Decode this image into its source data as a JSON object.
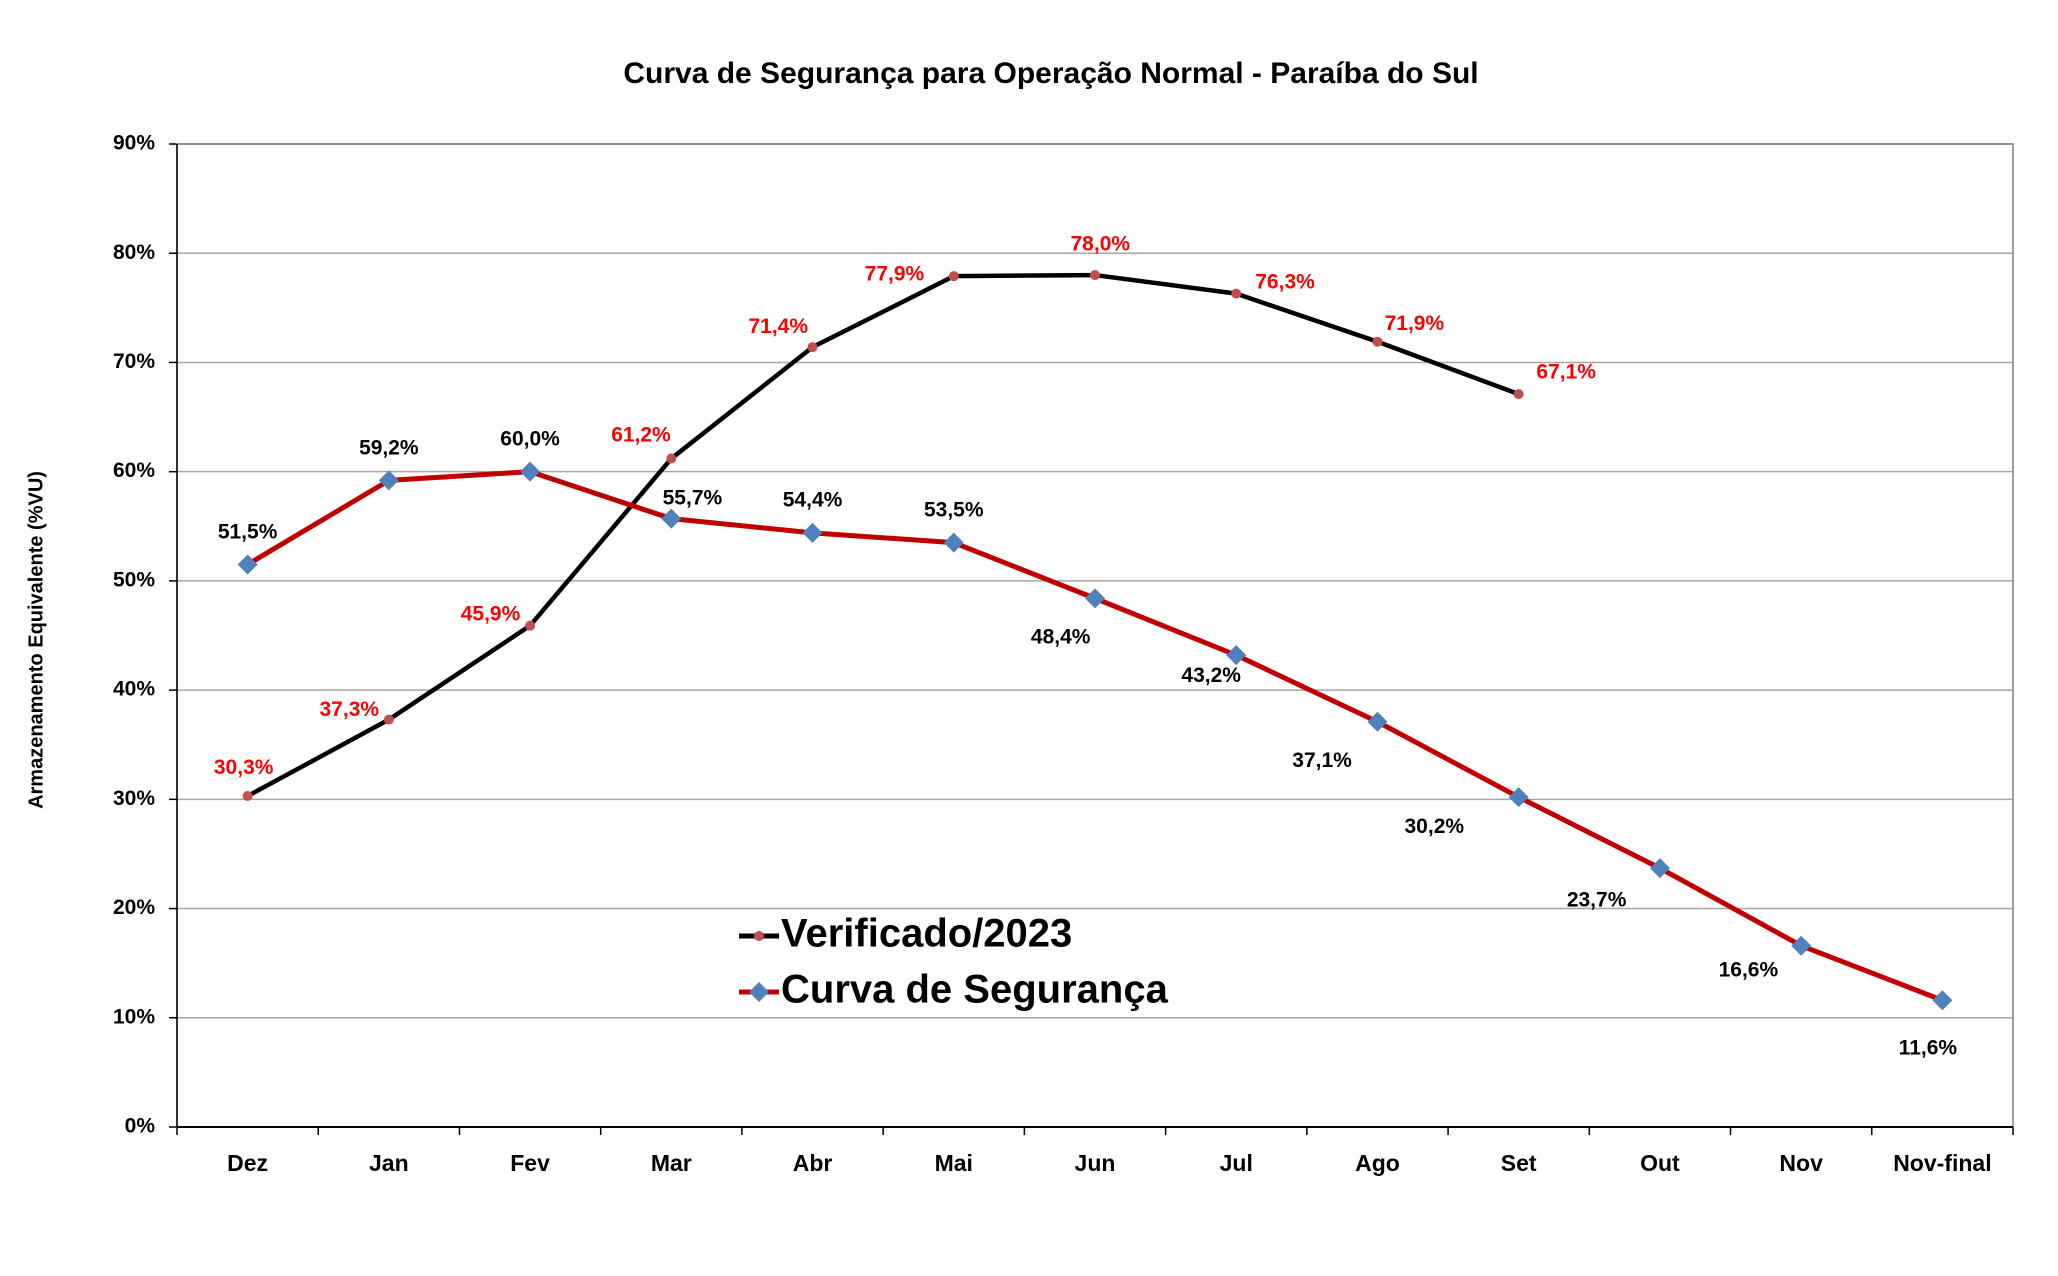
{
  "chart_data": {
    "type": "line",
    "title": "Curva de Segurança para Operação Normal - Paraíba do Sul",
    "y_label": "Armazenamento Equivalente (%VU)",
    "categories": [
      "Dez",
      "Jan",
      "Fev",
      "Mar",
      "Abr",
      "Mai",
      "Jun",
      "Jul",
      "Ago",
      "Set",
      "Out",
      "Nov",
      "Nov-final"
    ],
    "series": [
      {
        "name": "Verificado/2023",
        "color": "#000000",
        "marker": "circle",
        "marker_color": "#c0504d",
        "label_color": "#ff0000",
        "values": [
          30.3,
          37.3,
          45.9,
          61.2,
          71.4,
          77.9,
          78.0,
          76.3,
          71.9,
          67.1,
          null,
          null,
          null
        ],
        "value_labels": [
          "30,3%",
          "37,3%",
          "45,9%",
          "61,2%",
          "71,4%",
          "77,9%",
          "78,0%",
          "76,3%",
          "71,9%",
          "67,1%",
          null,
          null,
          null
        ]
      },
      {
        "name": "Curva de Segurança",
        "color": "#c00000",
        "marker": "diamond",
        "marker_color": "#4f81bd",
        "label_color": "#000000",
        "values": [
          51.5,
          59.2,
          60.0,
          55.7,
          54.4,
          53.5,
          48.4,
          43.2,
          37.1,
          30.2,
          23.7,
          16.6,
          11.6
        ],
        "value_labels": [
          "51,5%",
          "59,2%",
          "60,0%",
          "55,7%",
          "54,4%",
          "53,5%",
          "48,4%",
          "43,2%",
          "37,1%",
          "30,2%",
          "23,7%",
          "16,6%",
          "11,6%"
        ]
      }
    ],
    "ylim": [
      0,
      90
    ],
    "yticks": [
      {
        "value": 0,
        "label": "0%"
      },
      {
        "value": 10,
        "label": "10%"
      },
      {
        "value": 20,
        "label": "20%"
      },
      {
        "value": 30,
        "label": "30%"
      },
      {
        "value": 40,
        "label": "40%"
      },
      {
        "value": 50,
        "label": "50%"
      },
      {
        "value": 60,
        "label": "60%"
      },
      {
        "value": 70,
        "label": "70%"
      },
      {
        "value": 80,
        "label": "80%"
      },
      {
        "value": 90,
        "label": "90%"
      }
    ],
    "grid": true,
    "legend": "bottom"
  }
}
